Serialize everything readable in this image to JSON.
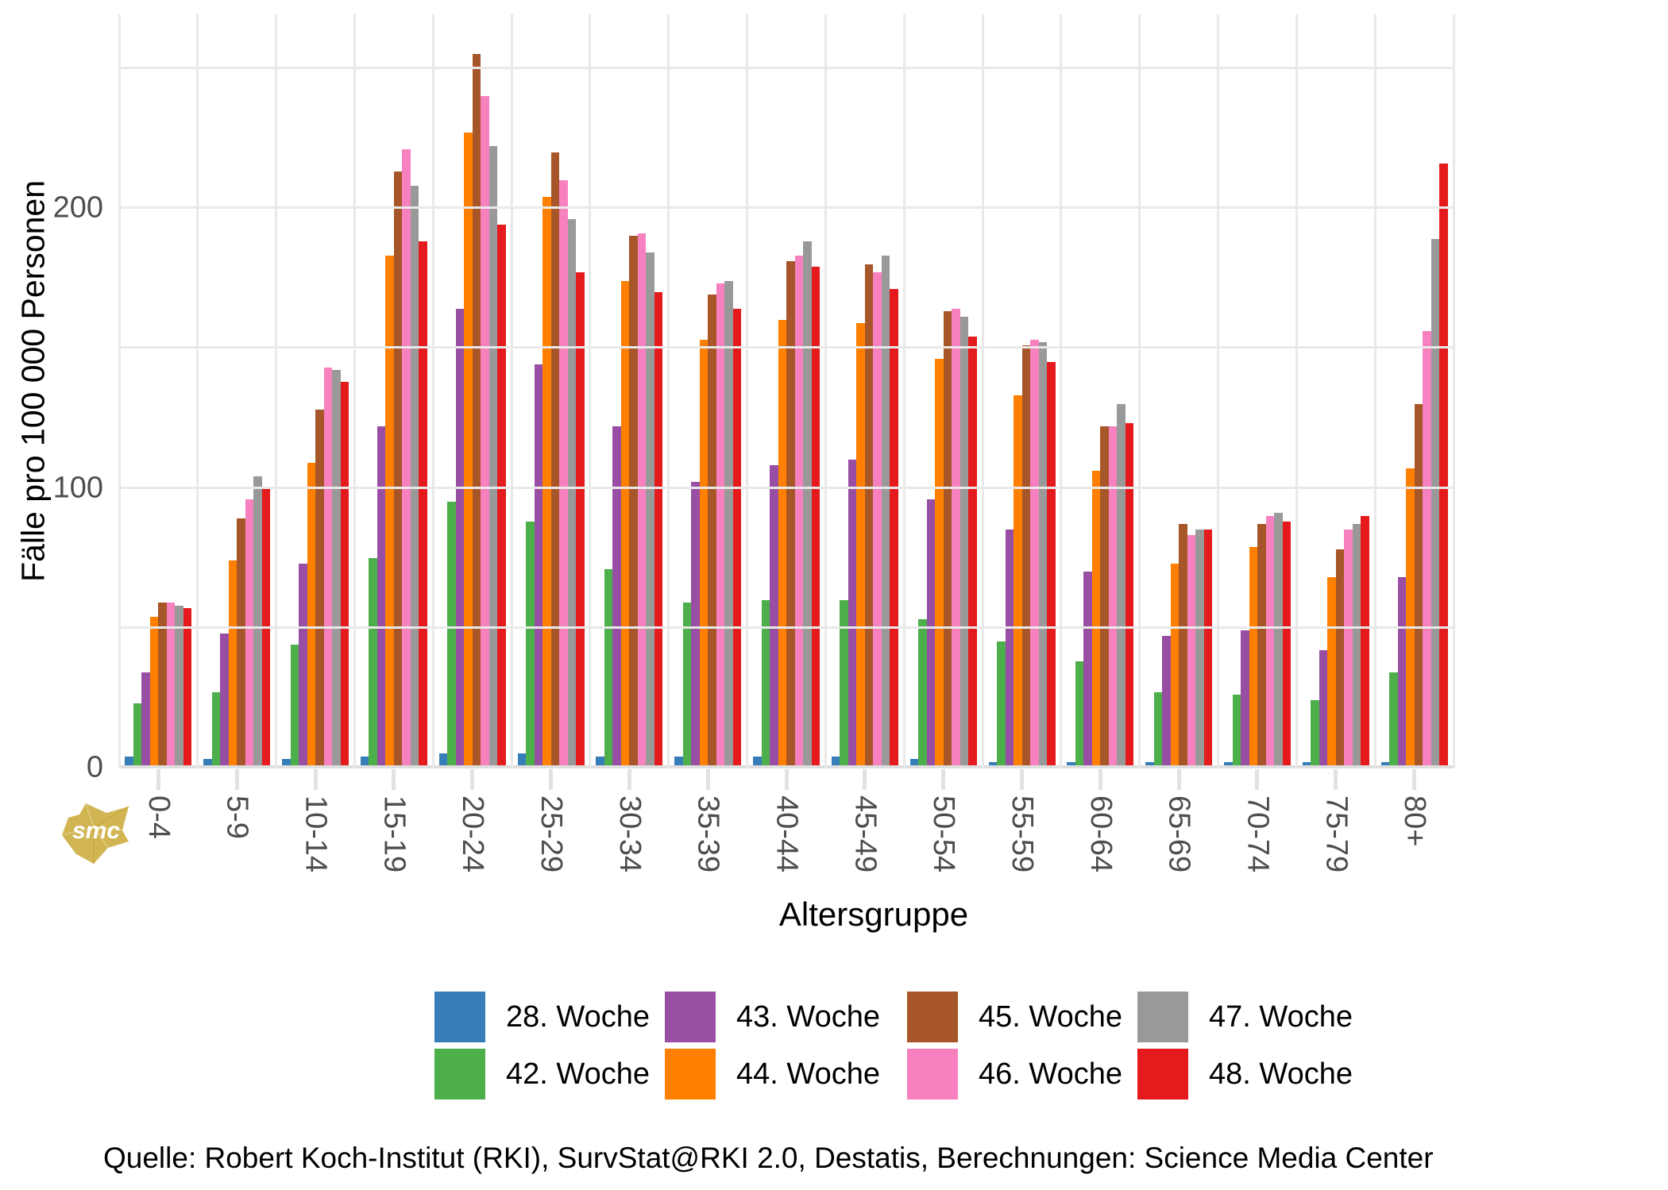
{
  "logo": {
    "text": "smc",
    "color": "#d2b553",
    "text_color": "#ffffff"
  },
  "axes": {
    "x_title": "Altersgruppe",
    "y_title": "Fälle pro 100 000 Personen",
    "tick_text_color": "#4d4d4d",
    "grid_color": "#e9e9e9"
  },
  "source_note": "Quelle: Robert Koch-Institut (RKI), SurvStat@RKI 2.0, Destatis, Berechnungen: Science Media Center",
  "chart_data": {
    "type": "bar",
    "title": "",
    "xlabel": "Altersgruppe",
    "ylabel": "Fälle pro 100 000 Personen",
    "grid": "on",
    "legend_position": "bottom",
    "ylim": [
      0,
      269
    ],
    "y_major_ticks": [
      0,
      100,
      200
    ],
    "y_gridline_step": 50,
    "y_gridline_max": 250,
    "categories": [
      "0-4",
      "5-9",
      "10-14",
      "15-19",
      "20-24",
      "25-29",
      "30-34",
      "35-39",
      "40-44",
      "45-49",
      "50-54",
      "55-59",
      "60-64",
      "65-69",
      "70-74",
      "75-79",
      "80+"
    ],
    "series": [
      {
        "name": "28. Woche",
        "color": "#377EB8",
        "values": [
          4,
          3,
          3,
          4,
          5,
          5,
          4,
          4,
          4,
          4,
          3,
          2,
          2,
          2,
          2,
          2,
          2
        ]
      },
      {
        "name": "42. Woche",
        "color": "#4DAF4A",
        "values": [
          23,
          27,
          44,
          75,
          95,
          88,
          71,
          59,
          60,
          60,
          53,
          45,
          38,
          27,
          26,
          24,
          34
        ]
      },
      {
        "name": "43. Woche",
        "color": "#984EA3",
        "values": [
          34,
          48,
          73,
          122,
          164,
          144,
          122,
          102,
          108,
          110,
          96,
          85,
          70,
          47,
          49,
          42,
          68
        ]
      },
      {
        "name": "44. Woche",
        "color": "#FF7F00",
        "values": [
          54,
          74,
          109,
          183,
          227,
          204,
          174,
          153,
          160,
          159,
          146,
          133,
          106,
          73,
          79,
          68,
          107
        ]
      },
      {
        "name": "45. Woche",
        "color": "#A65628",
        "values": [
          59,
          89,
          128,
          213,
          255,
          220,
          190,
          169,
          181,
          180,
          163,
          151,
          122,
          87,
          87,
          78,
          130
        ]
      },
      {
        "name": "46. Woche",
        "color": "#F781BF",
        "values": [
          59,
          96,
          143,
          221,
          240,
          210,
          191,
          173,
          183,
          177,
          164,
          153,
          122,
          83,
          90,
          85,
          156
        ]
      },
      {
        "name": "47. Woche",
        "color": "#999999",
        "values": [
          58,
          104,
          142,
          208,
          222,
          196,
          184,
          174,
          188,
          183,
          161,
          152,
          130,
          85,
          91,
          87,
          189
        ]
      },
      {
        "name": "48. Woche",
        "color": "#E41A1C",
        "values": [
          57,
          100,
          138,
          188,
          194,
          177,
          170,
          164,
          179,
          171,
          154,
          145,
          123,
          85,
          88,
          90,
          216
        ]
      }
    ],
    "legend_columns": [
      [
        0,
        1
      ],
      [
        2,
        3
      ],
      [
        4,
        5
      ],
      [
        6,
        7
      ]
    ]
  }
}
